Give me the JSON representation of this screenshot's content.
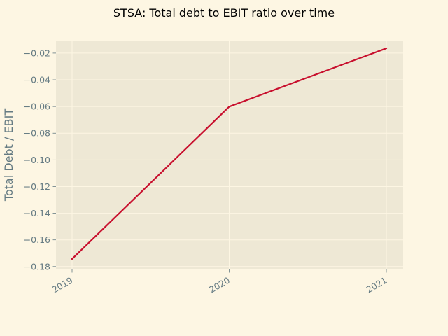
{
  "chart_data": {
    "type": "line",
    "title": "STSA: Total debt to EBIT ratio over time",
    "xlabel": "",
    "ylabel": "Total Debt / EBIT",
    "x": [
      "2019",
      "2020",
      "2021"
    ],
    "series": [
      {
        "values": [
          -0.1743,
          -0.0601,
          -0.0164
        ]
      }
    ],
    "ylim": [
      -0.1822,
      -0.0106
    ],
    "yticks": [
      "−0.18",
      "−0.16",
      "−0.14",
      "−0.12",
      "−0.10",
      "−0.08",
      "−0.06",
      "−0.04",
      "−0.02"
    ],
    "ytick_values": [
      -0.18,
      -0.16,
      -0.14,
      -0.12,
      -0.1,
      -0.08,
      -0.06,
      -0.04,
      -0.02
    ],
    "grid": true,
    "legend": "none",
    "colors": {
      "figure_bg": "#fdf6e3",
      "plot_bg": "#eee8d5",
      "line": "#c8102e",
      "grid": "#fdf6e3",
      "text": "#657b83"
    }
  }
}
